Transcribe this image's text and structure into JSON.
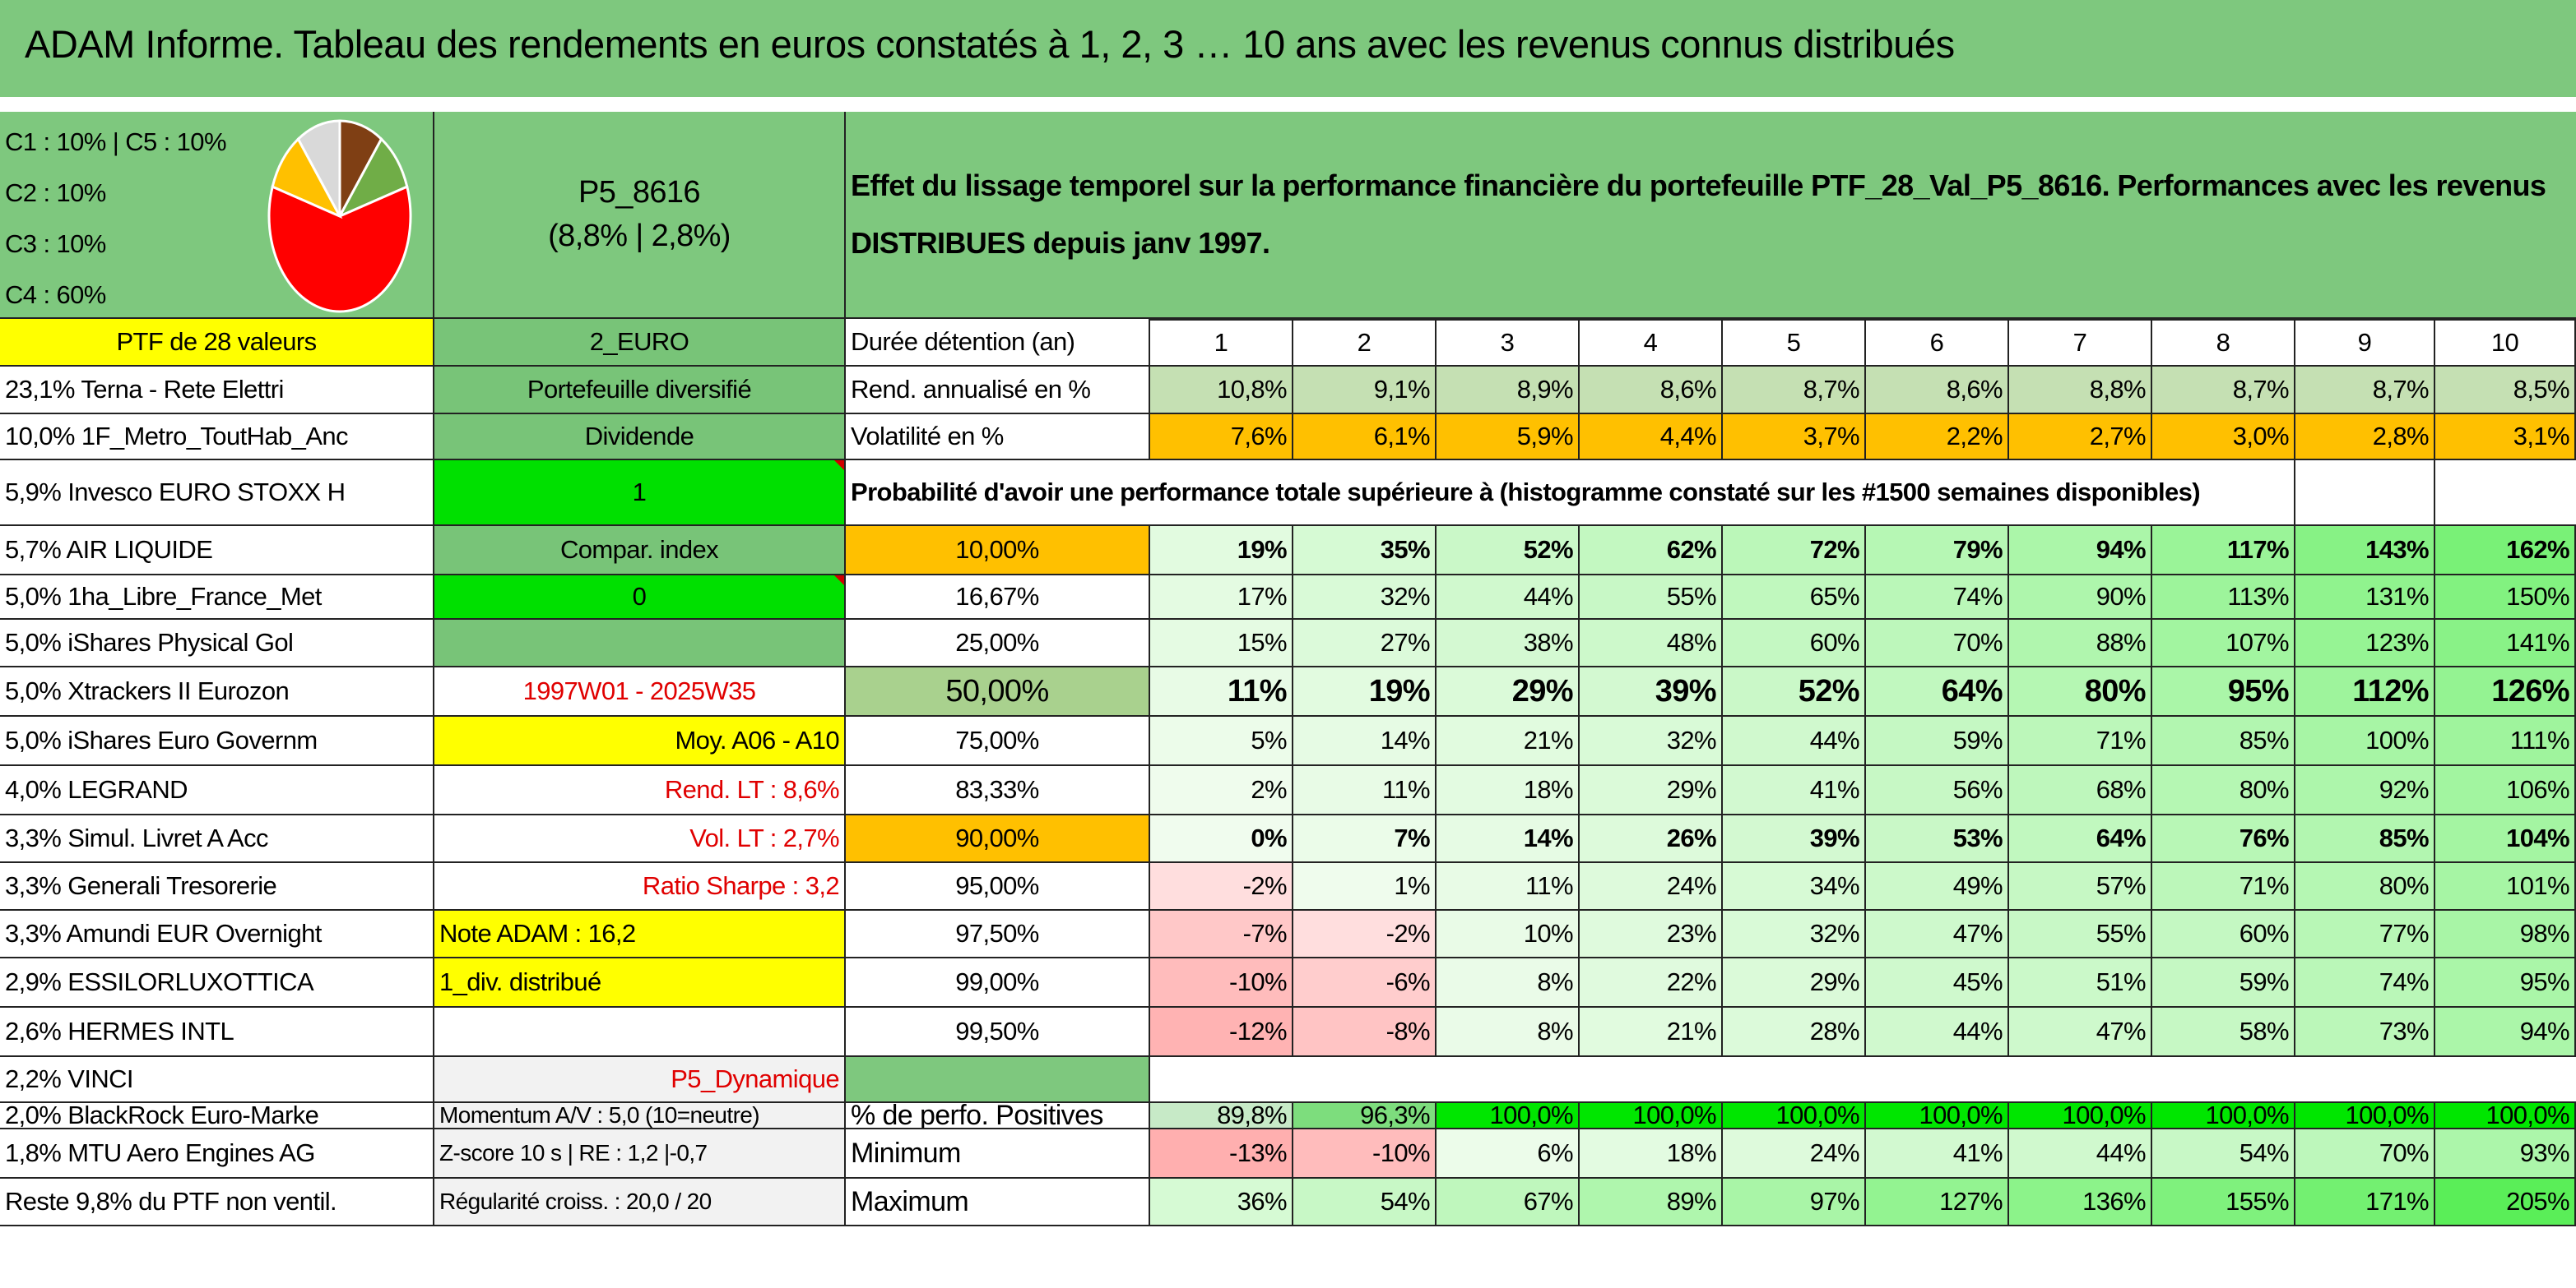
{
  "title": "ADAM Informe. Tableau des rendements en euros constatés à 1, 2, 3 … 10 ans avec les revenus connus distribués",
  "header": {
    "pie_labels": [
      "C1 : 10% | C5 : 10%",
      "C2 : 10%",
      "C3 : 10%",
      "C4 : 60%"
    ],
    "pie_slices": [
      {
        "name": "C1",
        "value": 10,
        "color": "#7f3f14"
      },
      {
        "name": "C2",
        "value": 10,
        "color": "#70ad47"
      },
      {
        "name": "C4",
        "value": 60,
        "color": "#ff0000"
      },
      {
        "name": "C3",
        "value": 10,
        "color": "#ffc000"
      },
      {
        "name": "C5",
        "value": 10,
        "color": "#d9d9d9"
      }
    ],
    "code": "P5_8616",
    "code_sub": "(8,8% | 2,8%)",
    "description_line1": "Effet du lissage temporel sur la performance financière du portefeuille PTF_28_Val_P5_8616. Performances avec les revenus",
    "description_line2": "DISTRIBUES depuis janv 1997."
  },
  "col_a": [
    "PTF de 28 valeurs",
    "23,1% Terna - Rete Elettri",
    "10,0% 1F_Metro_ToutHab_Anc",
    "5,9% Invesco EURO STOXX H",
    "5,7% AIR LIQUIDE",
    "5,0% 1ha_Libre_France_Met",
    "5,0% iShares Physical Gol",
    "5,0% Xtrackers II Eurozon",
    "5,0% iShares Euro Governm",
    "4,0% LEGRAND",
    "3,3% Simul. Livret A Acc",
    "3,3% Generali Tresorerie",
    "3,3% Amundi EUR Overnight",
    "2,9% ESSILORLUXOTTICA",
    "2,6% HERMES INTL",
    "2,2% VINCI",
    "2,0% BlackRock Euro-Marke",
    "1,8% MTU Aero Engines AG",
    "Reste 9,8% du PTF non ventil."
  ],
  "col_b": [
    "2_EURO",
    "Portefeuille diversifié",
    "Dividende",
    "1",
    "Compar. index",
    "0",
    "",
    "1997W01 - 2025W35",
    "Moy. A06 - A10",
    "Rend. LT : 8,6%",
    "Vol. LT : 2,7%",
    "Ratio Sharpe : 3,2",
    "Note ADAM : 16,2",
    "1_div. distribué",
    "",
    "P5_Dynamique",
    "Momentum A/V : 5,0 (10=neutre)",
    "Z-score 10 s | RE : 1,2 |-0,7",
    "Régularité croiss. : 20,0 / 20"
  ],
  "table": {
    "duree_label": "Durée détention (an)",
    "years": [
      "1",
      "2",
      "3",
      "4",
      "5",
      "6",
      "7",
      "8",
      "9",
      "10"
    ],
    "rend_label": "Rend. annualisé en %",
    "rend": [
      "10,8%",
      "9,1%",
      "8,9%",
      "8,6%",
      "8,7%",
      "8,6%",
      "8,8%",
      "8,7%",
      "8,7%",
      "8,5%"
    ],
    "vol_label": "Volatilité en %",
    "vol": [
      "7,6%",
      "6,1%",
      "5,9%",
      "4,4%",
      "3,7%",
      "2,2%",
      "2,7%",
      "3,0%",
      "2,8%",
      "3,1%"
    ],
    "prob_label": "Probabilité d'avoir une performance totale supérieure à (histogramme constaté sur les #1500 semaines disponibles)",
    "prob_rows": [
      {
        "p": "10,00%",
        "v": [
          "19%",
          "35%",
          "52%",
          "62%",
          "72%",
          "79%",
          "94%",
          "117%",
          "143%",
          "162%"
        ]
      },
      {
        "p": "16,67%",
        "v": [
          "17%",
          "32%",
          "44%",
          "55%",
          "65%",
          "74%",
          "90%",
          "113%",
          "131%",
          "150%"
        ]
      },
      {
        "p": "25,00%",
        "v": [
          "15%",
          "27%",
          "38%",
          "48%",
          "60%",
          "70%",
          "88%",
          "107%",
          "123%",
          "141%"
        ]
      },
      {
        "p": "50,00%",
        "v": [
          "11%",
          "19%",
          "29%",
          "39%",
          "52%",
          "64%",
          "80%",
          "95%",
          "112%",
          "126%"
        ]
      },
      {
        "p": "75,00%",
        "v": [
          "5%",
          "14%",
          "21%",
          "32%",
          "44%",
          "59%",
          "71%",
          "85%",
          "100%",
          "111%"
        ]
      },
      {
        "p": "83,33%",
        "v": [
          "2%",
          "11%",
          "18%",
          "29%",
          "41%",
          "56%",
          "68%",
          "80%",
          "92%",
          "106%"
        ]
      },
      {
        "p": "90,00%",
        "v": [
          "0%",
          "7%",
          "14%",
          "26%",
          "39%",
          "53%",
          "64%",
          "76%",
          "85%",
          "104%"
        ]
      },
      {
        "p": "95,00%",
        "v": [
          "-2%",
          "1%",
          "11%",
          "24%",
          "34%",
          "49%",
          "57%",
          "71%",
          "80%",
          "101%"
        ]
      },
      {
        "p": "97,50%",
        "v": [
          "-7%",
          "-2%",
          "10%",
          "23%",
          "32%",
          "47%",
          "55%",
          "60%",
          "77%",
          "98%"
        ]
      },
      {
        "p": "99,00%",
        "v": [
          "-10%",
          "-6%",
          "8%",
          "22%",
          "29%",
          "45%",
          "51%",
          "59%",
          "74%",
          "95%"
        ]
      },
      {
        "p": "99,50%",
        "v": [
          "-12%",
          "-8%",
          "8%",
          "21%",
          "28%",
          "44%",
          "47%",
          "58%",
          "73%",
          "94%"
        ]
      }
    ],
    "pos_label": "% de perfo. Positives",
    "pos": [
      "89,8%",
      "96,3%",
      "100,0%",
      "100,0%",
      "100,0%",
      "100,0%",
      "100,0%",
      "100,0%",
      "100,0%",
      "100,0%"
    ],
    "min_label": "Minimum",
    "min": [
      "-13%",
      "-10%",
      "6%",
      "18%",
      "24%",
      "41%",
      "44%",
      "54%",
      "70%",
      "93%"
    ],
    "max_label": "Maximum",
    "max": [
      "36%",
      "54%",
      "67%",
      "89%",
      "97%",
      "127%",
      "136%",
      "155%",
      "171%",
      "205%"
    ]
  }
}
